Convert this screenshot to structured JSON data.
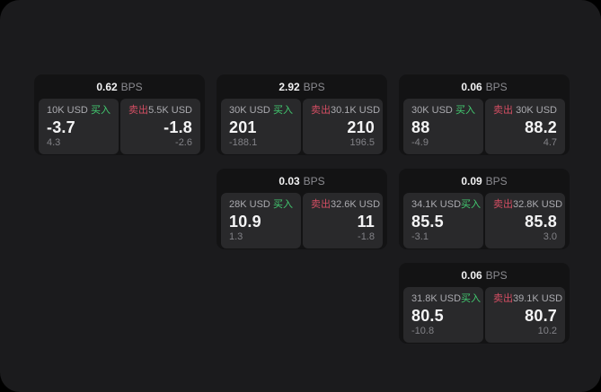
{
  "page": {
    "background_color": "#000000",
    "surface_color": "#1b1b1d",
    "card_color": "#131314",
    "panel_color": "#29292b",
    "buy_color": "#42ca70",
    "sell_color": "#d44e63"
  },
  "labels": {
    "bps_unit": "BPS",
    "buy": "买入",
    "sell": "卖出"
  },
  "cards": [
    {
      "bps": "0.62",
      "buy": {
        "notional": "10K USD",
        "side": "买入",
        "value": "-3.7",
        "sub": "4.3"
      },
      "sell": {
        "side": "卖出",
        "notional": "5.5K USD",
        "value": "-1.8",
        "sub": "-2.6"
      }
    },
    {
      "bps": "2.92",
      "buy": {
        "notional": "30K USD",
        "side": "买入",
        "value": "201",
        "sub": "-188.1"
      },
      "sell": {
        "side": "卖出",
        "notional": "30.1K USD",
        "value": "210",
        "sub": "196.5"
      }
    },
    {
      "bps": "0.06",
      "buy": {
        "notional": "30K USD",
        "side": "买入",
        "value": "88",
        "sub": "-4.9"
      },
      "sell": {
        "side": "卖出",
        "notional": "30K USD",
        "value": "88.2",
        "sub": "4.7"
      }
    },
    {
      "bps": "0.03",
      "buy": {
        "notional": "28K USD",
        "side": "买入",
        "value": "10.9",
        "sub": "1.3"
      },
      "sell": {
        "side": "卖出",
        "notional": "32.6K USD",
        "value": "11",
        "sub": "-1.8"
      }
    },
    {
      "bps": "0.09",
      "buy": {
        "notional": "34.1K USD",
        "side": "买入",
        "value": "85.5",
        "sub": "-3.1"
      },
      "sell": {
        "side": "卖出",
        "notional": "32.8K USD",
        "value": "85.8",
        "sub": "3.0"
      }
    },
    {
      "bps": "0.06",
      "buy": {
        "notional": "31.8K USD",
        "side": "买入",
        "value": "80.5",
        "sub": "-10.8"
      },
      "sell": {
        "side": "卖出",
        "notional": "39.1K USD",
        "value": "80.7",
        "sub": "10.2"
      }
    }
  ]
}
